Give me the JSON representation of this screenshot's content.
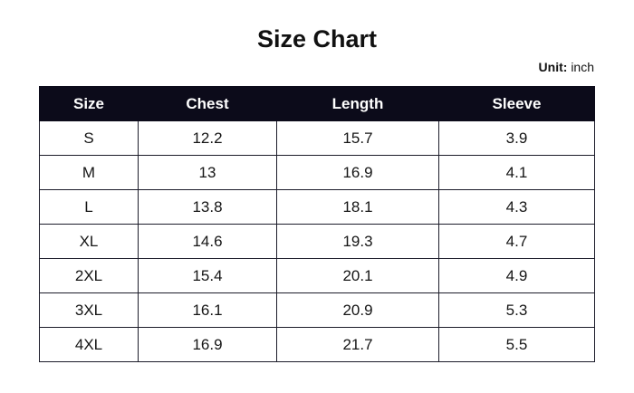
{
  "title": "Size Chart",
  "unit": {
    "label": "Unit:",
    "value": "inch"
  },
  "table": {
    "headers": [
      "Size",
      "Chest",
      "Length",
      "Sleeve"
    ],
    "rows": [
      [
        "S",
        "12.2",
        "15.7",
        "3.9"
      ],
      [
        "M",
        "13",
        "16.9",
        "4.1"
      ],
      [
        "L",
        "13.8",
        "18.1",
        "4.3"
      ],
      [
        "XL",
        "14.6",
        "19.3",
        "4.7"
      ],
      [
        "2XL",
        "15.4",
        "20.1",
        "4.9"
      ],
      [
        "3XL",
        "16.1",
        "20.9",
        "5.3"
      ],
      [
        "4XL",
        "16.9",
        "21.7",
        "5.5"
      ]
    ]
  },
  "colors": {
    "header_background": "#0c0b1a",
    "header_text": "#ffffff",
    "border": "#1c1c2a",
    "text": "#111111"
  }
}
